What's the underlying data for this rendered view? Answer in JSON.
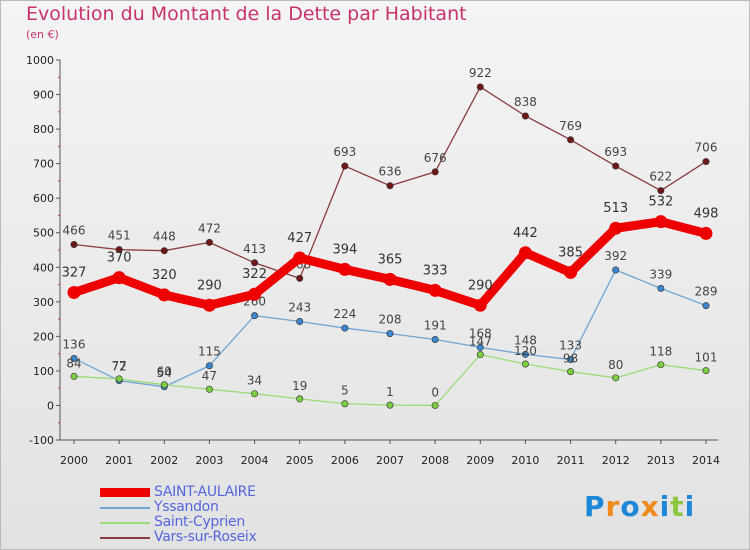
{
  "title": "Evolution du Montant de la Dette par Habitant",
  "subtitle": "(en €)",
  "logo": {
    "text": "Proxiti",
    "letters": [
      "P",
      "r",
      "o",
      "x",
      "i",
      "t",
      "i"
    ],
    "colors": [
      "#1e88d8",
      "#f08a1c",
      "#1e88d8",
      "#f08a1c",
      "#1e88d8",
      "#8cc63f",
      "#1e88d8"
    ]
  },
  "chart_data": {
    "type": "line",
    "x": [
      2000,
      2001,
      2002,
      2003,
      2004,
      2005,
      2006,
      2007,
      2008,
      2009,
      2010,
      2011,
      2012,
      2013,
      2014
    ],
    "x_tick_labels": [
      "2000",
      "2001",
      "2002",
      "2003",
      "2004",
      "2005",
      "2006",
      "2007",
      "2008",
      "2009",
      "2010",
      "2011",
      "2012",
      "2013",
      "2014"
    ],
    "ylim": [
      -100,
      1000
    ],
    "y_ticks": [
      -100,
      0,
      100,
      200,
      300,
      400,
      500,
      600,
      700,
      800,
      900,
      1000
    ],
    "y_tick_labels": [
      "-100",
      "0",
      "100",
      "200",
      "300",
      "400",
      "500",
      "600",
      "700",
      "800",
      "900",
      "1000"
    ],
    "grid": false,
    "legend_position": "bottom-left",
    "series": [
      {
        "name": "SAINT-AULAIRE",
        "values": [
          327,
          370,
          320,
          290,
          322,
          427,
          394,
          365,
          333,
          290,
          442,
          385,
          513,
          532,
          498
        ],
        "labels": [
          "327",
          "370",
          "320",
          "290",
          "322",
          "427",
          "394",
          "365",
          "333",
          "290",
          "442",
          "385",
          "513",
          "532",
          "498"
        ],
        "color": "#ee0000",
        "marker_color": "#ee0000",
        "emphasis": true
      },
      {
        "name": "Yssandon",
        "values": [
          136,
          72,
          54,
          115,
          260,
          243,
          224,
          208,
          191,
          168,
          148,
          133,
          392,
          339,
          289
        ],
        "labels": [
          "136",
          "72",
          "54",
          "115",
          "260",
          "243",
          "224",
          "208",
          "191",
          "168",
          "148",
          "133",
          "392",
          "339",
          "289"
        ],
        "color": "#6fa5d5",
        "marker_color": "#3b86cc",
        "emphasis": false
      },
      {
        "name": "Saint-Cyprien",
        "values": [
          84,
          77,
          60,
          47,
          34,
          19,
          5,
          1,
          0,
          147,
          120,
          98,
          80,
          118,
          101
        ],
        "labels": [
          "84",
          "77",
          "60",
          "47",
          "34",
          "19",
          "5",
          "1",
          "0",
          "147",
          "120",
          "98",
          "80",
          "118",
          "101"
        ],
        "color": "#9bdc78",
        "marker_color": "#7ccc44",
        "emphasis": false
      },
      {
        "name": "Vars-sur-Roseix",
        "values": [
          466,
          451,
          448,
          472,
          413,
          368,
          693,
          636,
          676,
          922,
          838,
          769,
          693,
          622,
          706
        ],
        "labels": [
          "466",
          "451",
          "448",
          "472",
          "413",
          "368",
          "693",
          "636",
          "676",
          "922",
          "838",
          "769",
          "693",
          "622",
          "706"
        ],
        "color": "#8a3c3c",
        "marker_color": "#6e1818",
        "emphasis": false
      }
    ]
  }
}
